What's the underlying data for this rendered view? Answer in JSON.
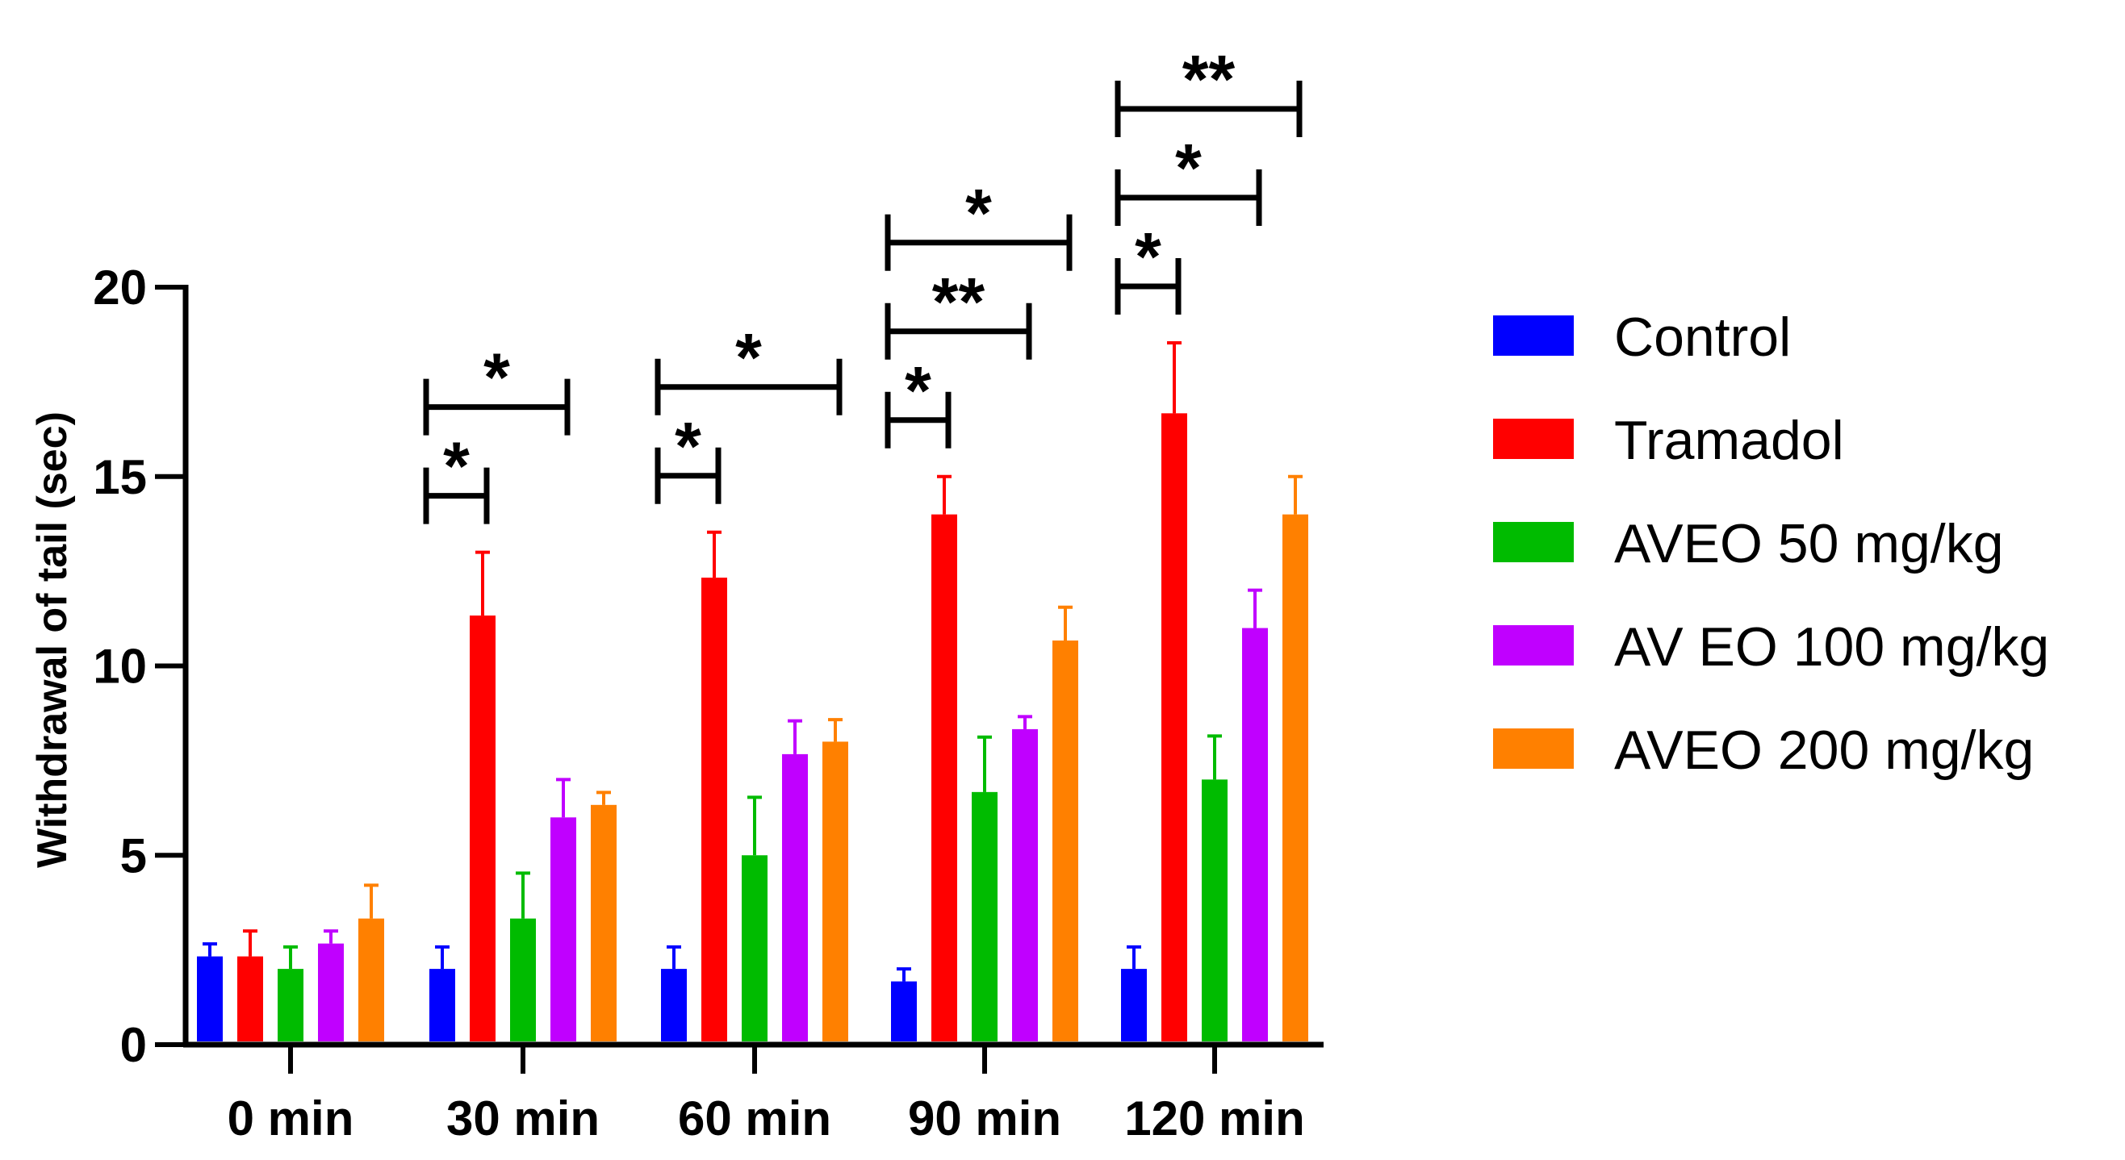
{
  "chart_data": {
    "type": "bar",
    "title": "",
    "xlabel": "",
    "ylabel": "Withdrawal of tail (sec)",
    "ylim": [
      0,
      20
    ],
    "yticks": [
      0,
      5,
      10,
      15,
      20
    ],
    "categories": [
      "0 min",
      "30 min",
      "60 min",
      "90 min",
      "120 min"
    ],
    "series": [
      {
        "name": "Control",
        "color": "#0000ff",
        "values": [
          2.33,
          2.0,
          2.0,
          1.67,
          2.0
        ],
        "errors": [
          0.33,
          0.58,
          0.58,
          0.33,
          0.58
        ]
      },
      {
        "name": "Tramadol",
        "color": "#ff0000",
        "values": [
          2.33,
          11.33,
          12.33,
          14.0,
          16.67
        ],
        "errors": [
          0.67,
          1.67,
          1.2,
          1.0,
          1.86
        ]
      },
      {
        "name": "AVEO 50 mg/kg",
        "color": "#00bb00",
        "values": [
          2.0,
          3.33,
          5.0,
          6.67,
          7.0
        ],
        "errors": [
          0.58,
          1.2,
          1.53,
          1.45,
          1.15
        ]
      },
      {
        "name": "AV EO 100 mg/kg",
        "color": "#c000ff",
        "values": [
          2.67,
          6.0,
          7.67,
          8.33,
          11.0
        ],
        "errors": [
          0.33,
          1.0,
          0.88,
          0.33,
          1.0
        ]
      },
      {
        "name": " AVEO 200 mg/kg",
        "color": "#ff8000",
        "values": [
          3.33,
          6.33,
          8.0,
          10.67,
          14.0
        ],
        "errors": [
          0.88,
          0.33,
          0.58,
          0.88,
          1.0
        ]
      }
    ],
    "legend_position": "right",
    "significance": [
      {
        "category": 1,
        "from": 0,
        "to": 1,
        "label": "*"
      },
      {
        "category": 1,
        "from": 0,
        "to": 3,
        "label": "*"
      },
      {
        "category": 2,
        "from": 0,
        "to": 1,
        "label": "*"
      },
      {
        "category": 2,
        "from": 0,
        "to": 4,
        "label": "*"
      },
      {
        "category": 3,
        "from": 0,
        "to": 1,
        "label": "*"
      },
      {
        "category": 3,
        "from": 0,
        "to": 3,
        "label": "**"
      },
      {
        "category": 3,
        "from": 0,
        "to": 4,
        "label": "*"
      },
      {
        "category": 4,
        "from": 0,
        "to": 1,
        "label": "*"
      },
      {
        "category": 4,
        "from": 0,
        "to": 3,
        "label": "*"
      },
      {
        "category": 4,
        "from": 0,
        "to": 4,
        "label": "**"
      }
    ]
  }
}
